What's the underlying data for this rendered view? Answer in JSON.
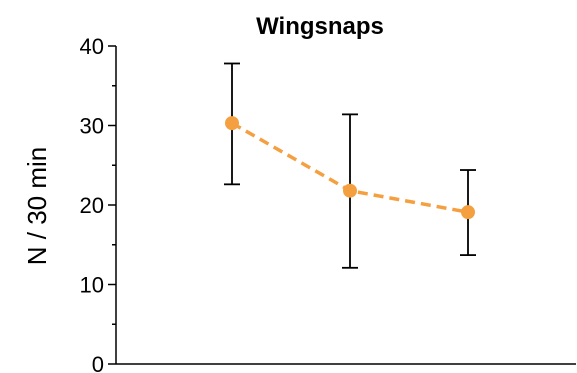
{
  "chart_data": {
    "type": "line",
    "title": "Wingsnaps",
    "xlabel": "",
    "ylabel": "N / 30 min",
    "ylim": [
      0,
      40
    ],
    "yticks": [
      0,
      10,
      20,
      30,
      40
    ],
    "grid": false,
    "legend": "none",
    "colors": {
      "series": "#f5a040",
      "errorbar": "#000000",
      "axis": "#000000"
    },
    "series": [
      {
        "values": [
          30.3,
          21.8,
          19.1
        ],
        "error_low": [
          22.6,
          12.1,
          13.7
        ],
        "error_high": [
          37.8,
          31.4,
          24.4
        ],
        "line_style": "dashed"
      }
    ]
  }
}
